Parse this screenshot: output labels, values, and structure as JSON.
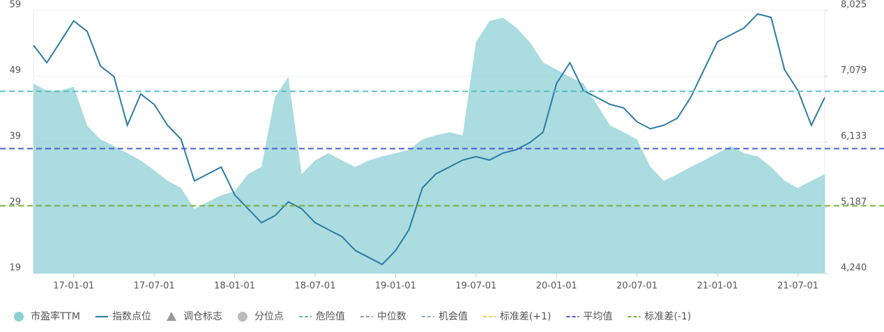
{
  "chart_data": {
    "type": "area-line",
    "categories": [
      null,
      null,
      null,
      "17-01-01",
      null,
      null,
      null,
      null,
      null,
      "17-07-01",
      null,
      null,
      null,
      null,
      null,
      "18-01-01",
      null,
      null,
      null,
      null,
      null,
      "18-07-01",
      null,
      null,
      null,
      null,
      null,
      "19-01-01",
      null,
      null,
      null,
      null,
      null,
      "19-07-01",
      null,
      null,
      null,
      null,
      null,
      "20-01-01",
      null,
      null,
      null,
      null,
      null,
      "20-07-01",
      null,
      null,
      null,
      null,
      null,
      "21-01-01",
      null,
      null,
      null,
      null,
      null,
      "21-07-01",
      null,
      null
    ],
    "series": [
      {
        "name": "市盈率TTM",
        "color": "#8dd0d6",
        "values": [
          47.9,
          46.8,
          46.8,
          47.4,
          41.5,
          39.4,
          38.4,
          37.3,
          36.2,
          34.7,
          33.1,
          32.0,
          28.8,
          29.9,
          30.9,
          31.5,
          34.1,
          35.2,
          45.8,
          48.9,
          34.1,
          36.2,
          37.3,
          36.2,
          35.2,
          36.2,
          36.8,
          37.3,
          37.8,
          39.4,
          40.0,
          40.5,
          40.0,
          54.2,
          57.4,
          57.9,
          56.4,
          54.2,
          51.1,
          50.0,
          48.9,
          47.9,
          44.7,
          41.5,
          40.5,
          39.4,
          35.2,
          33.1,
          34.1,
          35.2,
          36.2,
          37.3,
          38.4,
          37.3,
          36.8,
          35.2,
          33.1,
          32.0,
          33.1,
          34.1
        ]
      },
      {
        "name": "指数点位",
        "color": "#2b7ba3",
        "axis": "y2",
        "values": [
          7524,
          7274,
          7574,
          7875,
          7725,
          7224,
          7074,
          6373,
          6823,
          6673,
          6373,
          6173,
          5572,
          5672,
          5772,
          5372,
          5172,
          4972,
          5072,
          5272,
          5172,
          4972,
          4871,
          4771,
          4571,
          4471,
          4371,
          4571,
          4871,
          5472,
          5672,
          5772,
          5872,
          5922,
          5872,
          5972,
          6022,
          6123,
          6273,
          6974,
          7274,
          6873,
          6773,
          6673,
          6623,
          6423,
          6323,
          6373,
          6473,
          6773,
          7174,
          7574,
          7675,
          7775,
          7975,
          7925,
          7174,
          6873,
          6373,
          6773
        ]
      }
    ],
    "markers": [
      {
        "name": "调仓标志",
        "color": "#999999",
        "shape": "triangle"
      },
      {
        "name": "分位点",
        "color": "#bbbbbb",
        "shape": "circle"
      }
    ],
    "reference_lines": [
      {
        "name": "危险值",
        "color": "#5bbfbf",
        "value": 46.7
      },
      {
        "name": "中位数",
        "color": "#999999"
      },
      {
        "name": "机会值",
        "color": "#9ab"
      },
      {
        "name": "标准差(+1)",
        "color": "#e6d36a"
      },
      {
        "name": "平均值",
        "color": "#4a5bd0",
        "value": 38.0
      },
      {
        "name": "标准差(-1)",
        "color": "#79b13a",
        "value": 29.3
      }
    ],
    "ylim": [
      19,
      59
    ],
    "yticks": [
      19,
      29,
      39,
      49,
      59
    ],
    "y2lim": [
      4240,
      8025
    ],
    "y2ticks": [
      {
        "value": 4240,
        "label": "4,240"
      },
      {
        "value": 5187,
        "label": "5,187"
      },
      {
        "value": 6133,
        "label": "6,133"
      },
      {
        "value": 7079,
        "label": "7,079"
      },
      {
        "value": 8025,
        "label": "8,025"
      }
    ],
    "grid": true
  }
}
